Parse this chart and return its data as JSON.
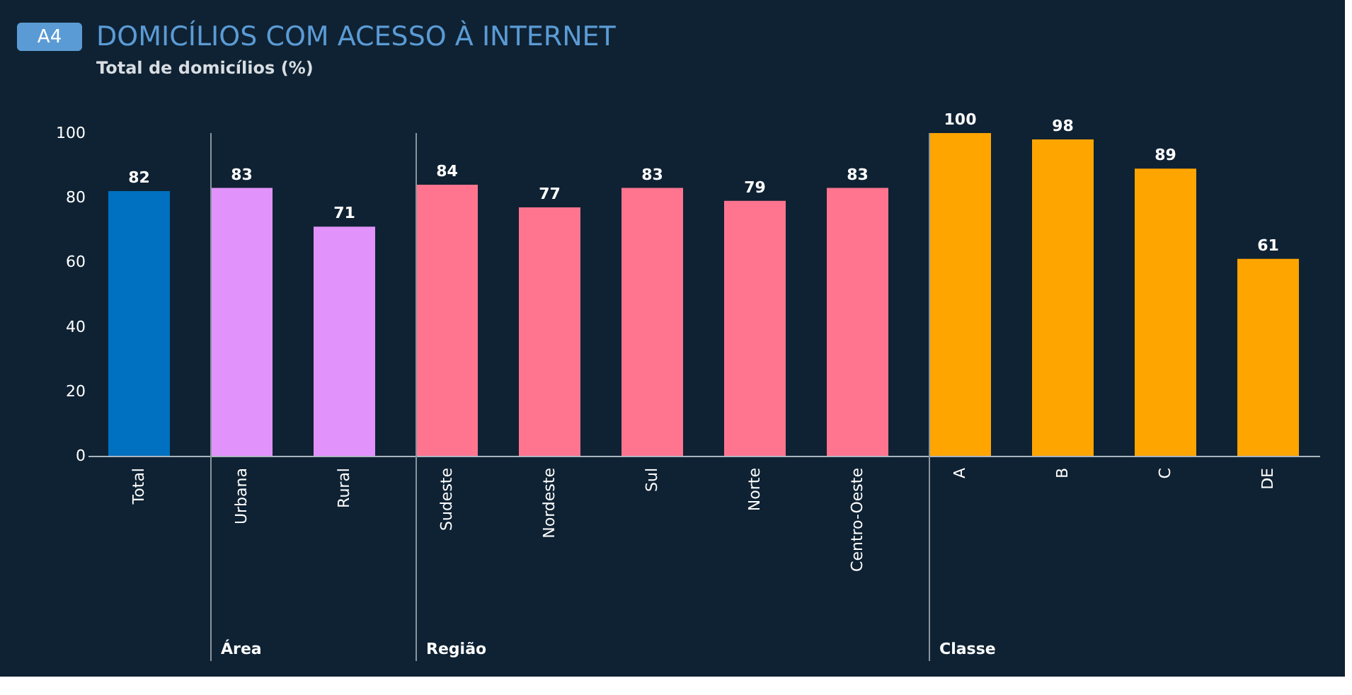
{
  "chart_data": {
    "type": "bar",
    "title": "DOMICÍLIOS COM ACESSO À INTERNET",
    "subtitle": "Total de domicílios (%)",
    "annotations": [
      "A4",
      "Área",
      "Região",
      "Classe"
    ],
    "categories": [
      "Total",
      "Urbana",
      "Rural",
      "Sudeste",
      "Nordeste",
      "Sul",
      "Norte",
      "Centro-Oeste",
      "A",
      "B",
      "C",
      "DE"
    ],
    "values": [
      82,
      83,
      71,
      84,
      77,
      83,
      79,
      83,
      100,
      98,
      89,
      61
    ],
    "colors": [
      "#0070c0",
      "#e292fb",
      "#e292fb",
      "#ff7590",
      "#ff7590",
      "#ff7590",
      "#ff7590",
      "#ff7590",
      "#ffa500",
      "#ffa500",
      "#ffa500",
      "#ffa500"
    ],
    "ylim": [
      0,
      100
    ],
    "yticks": [
      0,
      20,
      40,
      60,
      80,
      100
    ],
    "grid": false,
    "data_labels": true
  }
}
